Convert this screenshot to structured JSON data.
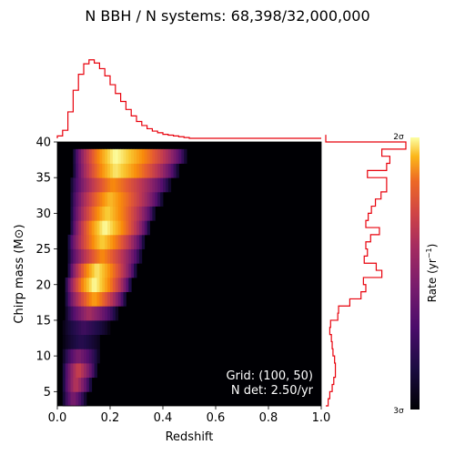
{
  "title": "N BBH / N systems: 68,398/32,000,000",
  "annotation": {
    "grid": "Grid: (100, 50)",
    "ndet": "N det: 2.50/yr"
  },
  "colors": {
    "histogram": "#e8000b",
    "colormap": "inferno"
  },
  "chart_data": {
    "type": "heatmap",
    "title": "N BBH / N systems: 68,398/32,000,000",
    "xlabel": "Redshift",
    "ylabel": "Chirp mass (M⊙)",
    "xlim": [
      0.0,
      1.0
    ],
    "ylim": [
      3,
      40
    ],
    "xticks": [
      "0.0",
      "0.2",
      "0.4",
      "0.6",
      "0.8",
      "1.0"
    ],
    "yticks": [
      "5",
      "10",
      "15",
      "20",
      "25",
      "30",
      "35",
      "40"
    ],
    "grid": false,
    "colorbar": {
      "label": "Rate (yr⁻¹)",
      "top_label": "2σ",
      "bottom_label": "3σ",
      "colormap": "inferno"
    },
    "heatmap_columns": [
      {
        "mass": [
          3,
          5
        ],
        "z_start": 0.02,
        "peak_z": 0.06,
        "z_end": 0.11,
        "peak": 0.35
      },
      {
        "mass": [
          5,
          7
        ],
        "z_start": 0.02,
        "peak_z": 0.07,
        "z_end": 0.13,
        "peak": 0.5
      },
      {
        "mass": [
          7,
          9
        ],
        "z_start": 0.02,
        "peak_z": 0.08,
        "z_end": 0.15,
        "peak": 0.55
      },
      {
        "mass": [
          9,
          11
        ],
        "z_start": 0.02,
        "peak_z": 0.08,
        "z_end": 0.16,
        "peak": 0.35
      },
      {
        "mass": [
          11,
          13
        ],
        "z_start": 0.02,
        "peak_z": 0.09,
        "z_end": 0.17,
        "peak": 0.15
      },
      {
        "mass": [
          13,
          15
        ],
        "z_start": 0.02,
        "peak_z": 0.1,
        "z_end": 0.2,
        "peak": 0.2
      },
      {
        "mass": [
          15,
          17
        ],
        "z_start": 0.03,
        "peak_z": 0.12,
        "z_end": 0.23,
        "peak": 0.45
      },
      {
        "mass": [
          17,
          19
        ],
        "z_start": 0.03,
        "peak_z": 0.14,
        "z_end": 0.26,
        "peak": 0.8
      },
      {
        "mass": [
          19,
          21
        ],
        "z_start": 0.03,
        "peak_z": 0.14,
        "z_end": 0.28,
        "peak": 1.0
      },
      {
        "mass": [
          21,
          23
        ],
        "z_start": 0.04,
        "peak_z": 0.15,
        "z_end": 0.3,
        "peak": 0.95
      },
      {
        "mass": [
          23,
          25
        ],
        "z_start": 0.04,
        "peak_z": 0.17,
        "z_end": 0.32,
        "peak": 0.75
      },
      {
        "mass": [
          25,
          27
        ],
        "z_start": 0.04,
        "peak_z": 0.17,
        "z_end": 0.33,
        "peak": 0.9
      },
      {
        "mass": [
          27,
          29
        ],
        "z_start": 0.05,
        "peak_z": 0.18,
        "z_end": 0.35,
        "peak": 1.0
      },
      {
        "mass": [
          29,
          31
        ],
        "z_start": 0.05,
        "peak_z": 0.19,
        "z_end": 0.37,
        "peak": 0.9
      },
      {
        "mass": [
          31,
          33
        ],
        "z_start": 0.05,
        "peak_z": 0.2,
        "z_end": 0.4,
        "peak": 0.85
      },
      {
        "mass": [
          33,
          35
        ],
        "z_start": 0.05,
        "peak_z": 0.21,
        "z_end": 0.43,
        "peak": 0.75
      },
      {
        "mass": [
          35,
          37
        ],
        "z_start": 0.06,
        "peak_z": 0.22,
        "z_end": 0.46,
        "peak": 0.95
      },
      {
        "mass": [
          37,
          39
        ],
        "z_start": 0.06,
        "peak_z": 0.22,
        "z_end": 0.49,
        "peak": 1.0
      }
    ],
    "top_histogram": {
      "x": [
        0.0,
        0.02,
        0.04,
        0.06,
        0.08,
        0.1,
        0.12,
        0.14,
        0.16,
        0.18,
        0.2,
        0.22,
        0.24,
        0.26,
        0.28,
        0.3,
        0.32,
        0.34,
        0.36,
        0.38,
        0.4,
        0.42,
        0.44,
        0.46,
        0.48,
        0.5
      ],
      "values": [
        0.03,
        0.1,
        0.33,
        0.6,
        0.8,
        0.93,
        0.98,
        0.94,
        0.87,
        0.78,
        0.67,
        0.56,
        0.46,
        0.36,
        0.28,
        0.21,
        0.16,
        0.12,
        0.09,
        0.07,
        0.05,
        0.04,
        0.03,
        0.02,
        0.01,
        0.0
      ]
    },
    "right_histogram": {
      "mass": [
        3,
        4,
        5,
        6,
        7,
        8,
        9,
        10,
        11,
        12,
        13,
        14,
        15,
        16,
        17,
        18,
        19,
        20,
        21,
        22,
        23,
        24,
        25,
        26,
        27,
        28,
        29,
        30,
        31,
        32,
        33,
        34,
        35,
        36,
        37,
        38,
        39,
        40
      ],
      "values": [
        0.03,
        0.05,
        0.08,
        0.1,
        0.12,
        0.12,
        0.11,
        0.09,
        0.08,
        0.07,
        0.05,
        0.06,
        0.15,
        0.16,
        0.3,
        0.44,
        0.5,
        0.47,
        0.7,
        0.63,
        0.48,
        0.52,
        0.5,
        0.56,
        0.67,
        0.5,
        0.53,
        0.57,
        0.62,
        0.69,
        0.76,
        0.76,
        0.52,
        0.76,
        0.8,
        0.7,
        1.0,
        0.0
      ]
    }
  }
}
